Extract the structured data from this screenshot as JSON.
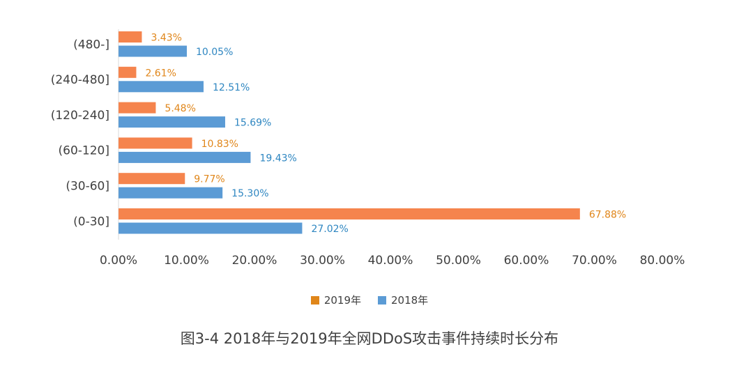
{
  "chart_data": {
    "type": "bar",
    "orientation": "horizontal",
    "categories": [
      "(0-30]",
      "(30-60]",
      "(60-120]",
      "(120-240]",
      "(240-480]",
      "(480-]"
    ],
    "series": [
      {
        "name": "2019年",
        "color": "#F5844D",
        "label_color": "#E0861A",
        "values": [
          67.88,
          9.77,
          10.83,
          5.48,
          2.61,
          3.43
        ],
        "labels": [
          "67.88%",
          "9.77%",
          "10.83%",
          "5.48%",
          "2.61%",
          "3.43%"
        ]
      },
      {
        "name": "2018年",
        "color": "#5B9BD5",
        "label_color": "#2E86C1",
        "values": [
          27.02,
          15.3,
          19.43,
          15.69,
          12.51,
          10.05
        ],
        "labels": [
          "27.02%",
          "15.30%",
          "19.43%",
          "15.69%",
          "12.51%",
          "10.05%"
        ]
      }
    ],
    "xlim": [
      0,
      80
    ],
    "xticks": [
      "0.00%",
      "10.00%",
      "20.00%",
      "30.00%",
      "40.00%",
      "50.00%",
      "60.00%",
      "70.00%",
      "80.00%"
    ],
    "grid": false,
    "legend_position": "bottom",
    "legend_colors": [
      "#E0861A",
      "#5B9BD5"
    ],
    "caption": "图3-4 2018年与2019年全网DDoS攻击事件持续时长分布"
  }
}
